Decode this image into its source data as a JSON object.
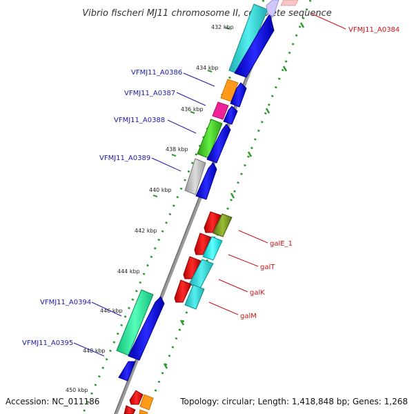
{
  "title": "Vibrio fischeri MJ11 chromosome II, complete sequence",
  "accession_text": "Accession: NC_011186",
  "topology_text": "Topology: circular; Length: 1,418,848 bp; Genes: 1,268",
  "ticks": [
    "432 kbp",
    "434 kbp",
    "436 kbp",
    "438 kbp",
    "440 kbp",
    "442 kbp",
    "444 kbp",
    "446 kbp",
    "448 kbp",
    "450 kbp"
  ],
  "left_labels": [
    "VFMJ11_A0386",
    "VFMJ11_A0387",
    "VFMJ11_A0388",
    "VFMJ11_A0389",
    "VFMJ11_A0394",
    "VFMJ11_A0395"
  ],
  "right_labels": [
    "VFMJ11_A0384",
    "galE_1",
    "galT",
    "galK",
    "galM"
  ],
  "colors": {
    "label_left": "#1a1aa6",
    "label_right": "#cc1111",
    "tick_green": "#2a9a2a",
    "backbone": "#888888",
    "cds_forward": "#0000dd",
    "cds_reverse": "#dd0000",
    "teal": "#22cccc",
    "orange": "#ff9900",
    "magenta": "#ee2299",
    "green": "#44cc22",
    "gray": "#bbbbbb",
    "olive": "#779922",
    "cyan": "#00eeee",
    "mint": "#22ee99"
  }
}
